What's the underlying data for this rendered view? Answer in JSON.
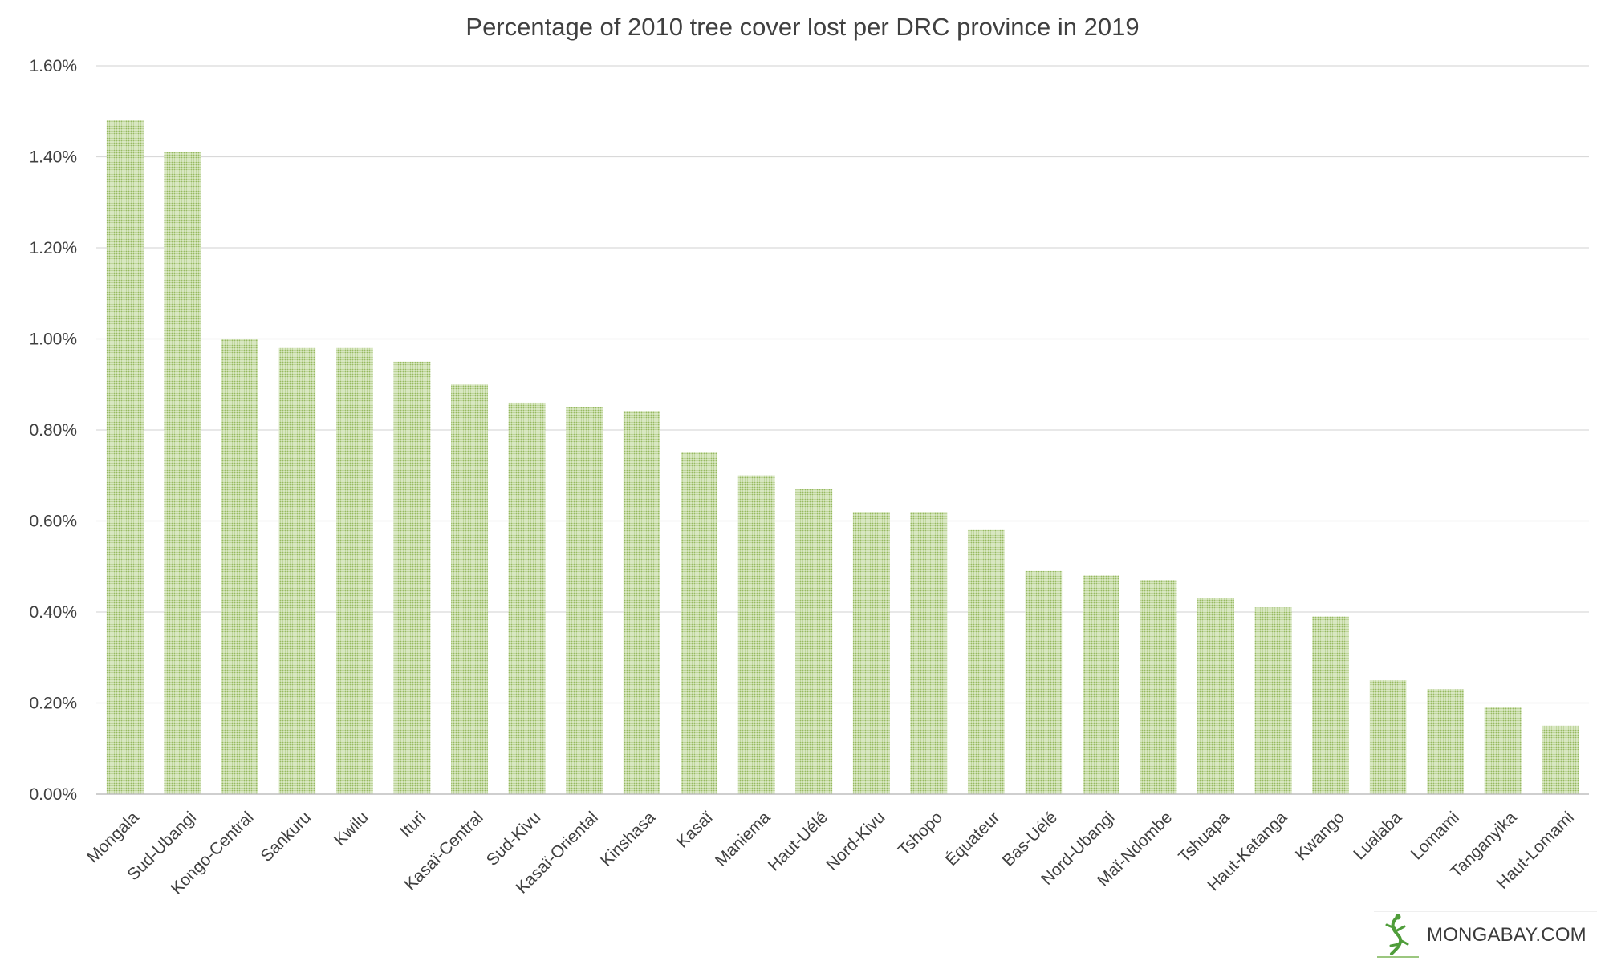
{
  "chart_data": {
    "type": "bar",
    "title": "Percentage of 2010 tree cover lost per DRC province in 2019",
    "xlabel": "",
    "ylabel": "",
    "ylim": [
      0,
      1.6
    ],
    "y_ticks": [
      0,
      0.2,
      0.4,
      0.6,
      0.8,
      1.0,
      1.2,
      1.4,
      1.6
    ],
    "y_tick_labels": [
      "0.00%",
      "0.20%",
      "0.40%",
      "0.60%",
      "0.80%",
      "1.00%",
      "1.20%",
      "1.40%",
      "1.60%"
    ],
    "grid": true,
    "legend": "none",
    "categories": [
      "Mongala",
      "Sud-Ubangi",
      "Kongo-Central",
      "Sankuru",
      "Kwilu",
      "Ituri",
      "Kasaï-Central",
      "Sud-Kivu",
      "Kasaï-Oriental",
      "Kinshasa",
      "Kasaï",
      "Maniema",
      "Haut-Uélé",
      "Nord-Kivu",
      "Tshopo",
      "Équateur",
      "Bas-Uélé",
      "Nord-Ubangi",
      "Maï-Ndombe",
      "Tshuapa",
      "Haut-Katanga",
      "Kwango",
      "Lualaba",
      "Lomami",
      "Tanganyika",
      "Haut-Lomami"
    ],
    "values": [
      1.48,
      1.41,
      1.0,
      0.98,
      0.98,
      0.95,
      0.9,
      0.86,
      0.85,
      0.84,
      0.75,
      0.7,
      0.67,
      0.62,
      0.62,
      0.58,
      0.49,
      0.48,
      0.47,
      0.43,
      0.41,
      0.39,
      0.25,
      0.23,
      0.19,
      0.15
    ],
    "bar_color": "#9dbf6a"
  },
  "watermark": {
    "text": "MONGABAY.COM",
    "icon": "lizard-logo-icon",
    "color": "#4f9d3a"
  }
}
